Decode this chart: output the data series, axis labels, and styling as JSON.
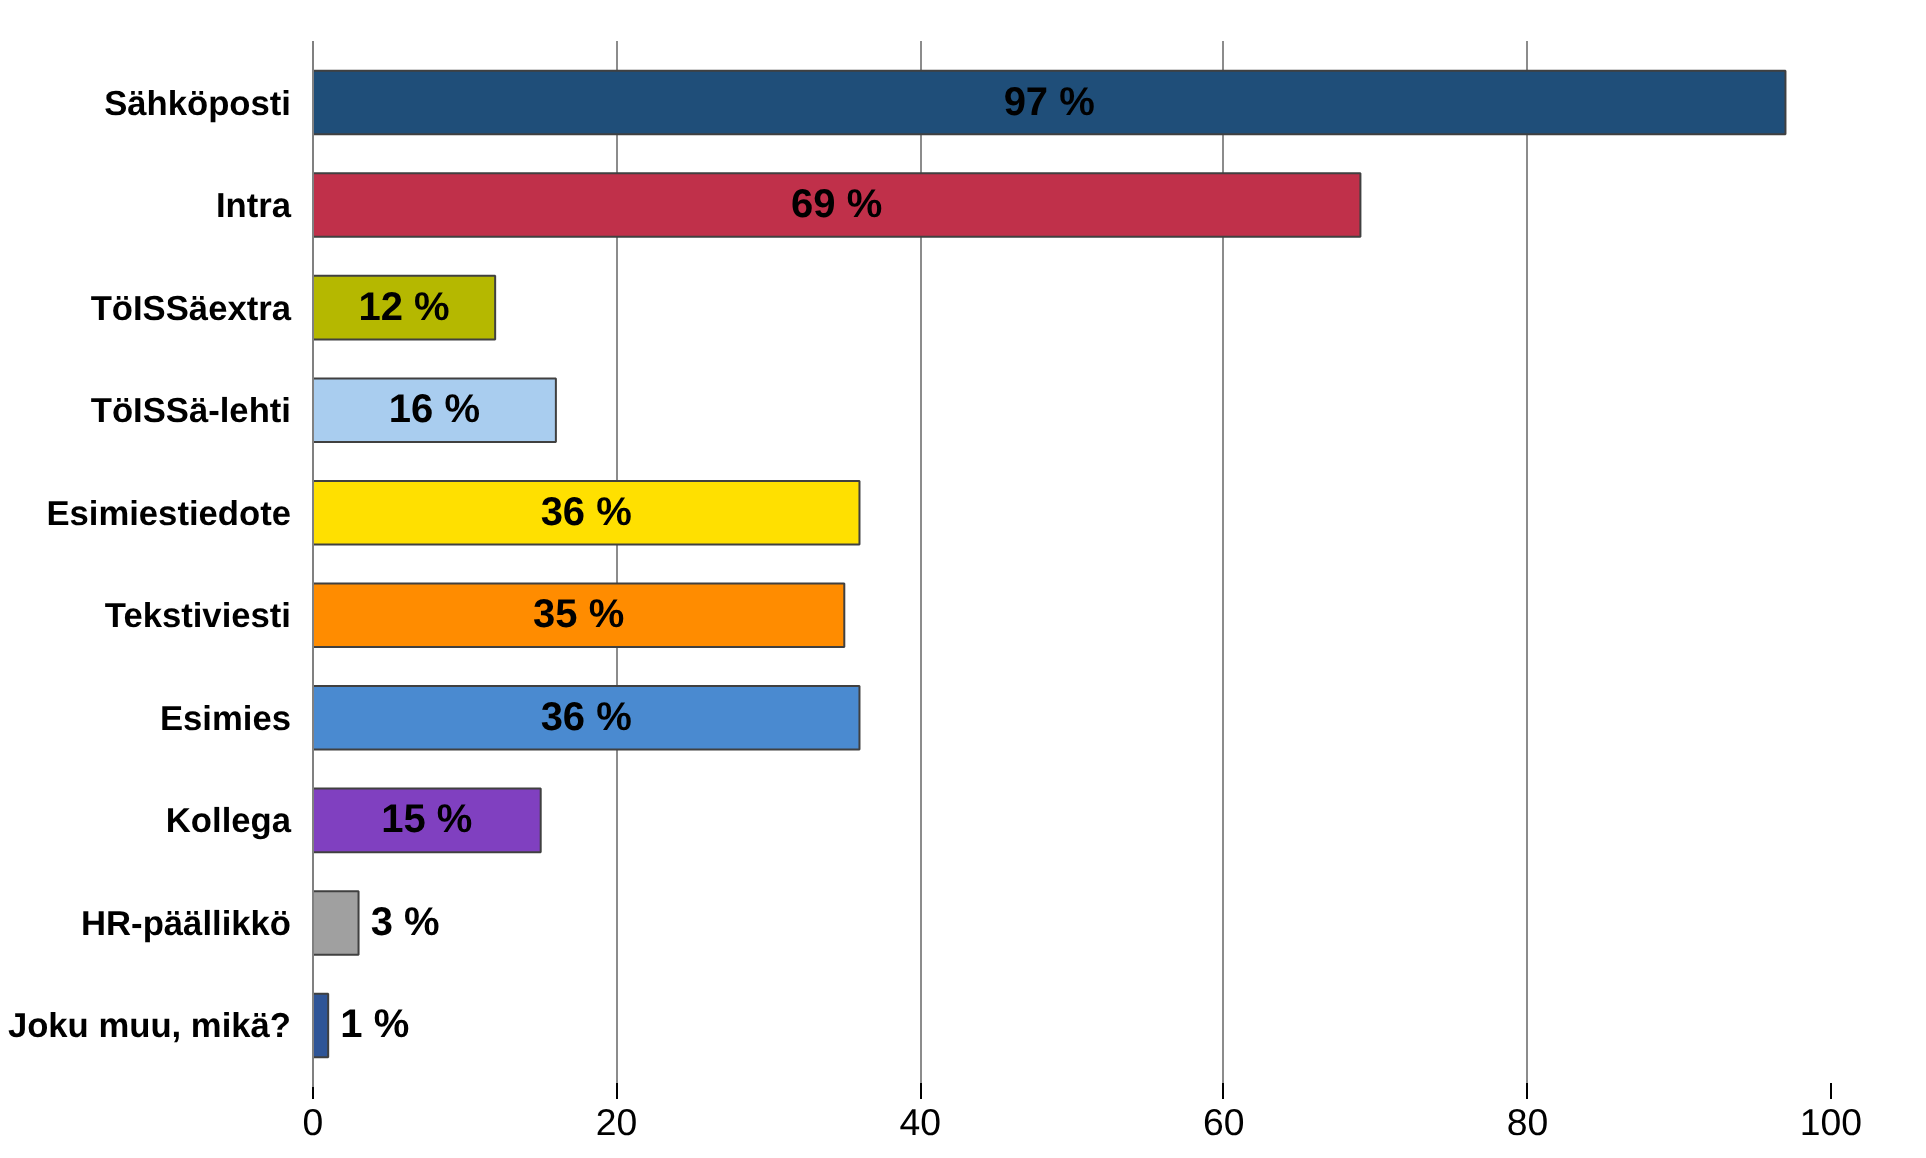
{
  "chart_data": {
    "type": "bar",
    "orientation": "horizontal",
    "categories": [
      "Sähköposti",
      "Intra",
      "TöISSäextra",
      "TöISSä-lehti",
      "Esimiestiedote",
      "Tekstiviesti",
      "Esimies",
      "Kollega",
      "HR-päällikkö",
      "Joku muu, mikä?"
    ],
    "values": [
      97,
      69,
      12,
      16,
      36,
      35,
      36,
      15,
      3,
      1
    ],
    "value_labels": [
      "97 %",
      "69 %",
      "12 %",
      "16 %",
      "36 %",
      "35 %",
      "36 %",
      "15 %",
      "3 %",
      "1 %"
    ],
    "colors": [
      "#1f4e79",
      "#c0304a",
      "#b5b800",
      "#a9cdef",
      "#ffe000",
      "#ff8c00",
      "#4a8ad0",
      "#8040c0",
      "#a0a0a0",
      "#2f5597"
    ],
    "xlim": [
      0,
      100
    ],
    "xticks": [
      0,
      20,
      40,
      60,
      80,
      100
    ],
    "grid": "x"
  }
}
